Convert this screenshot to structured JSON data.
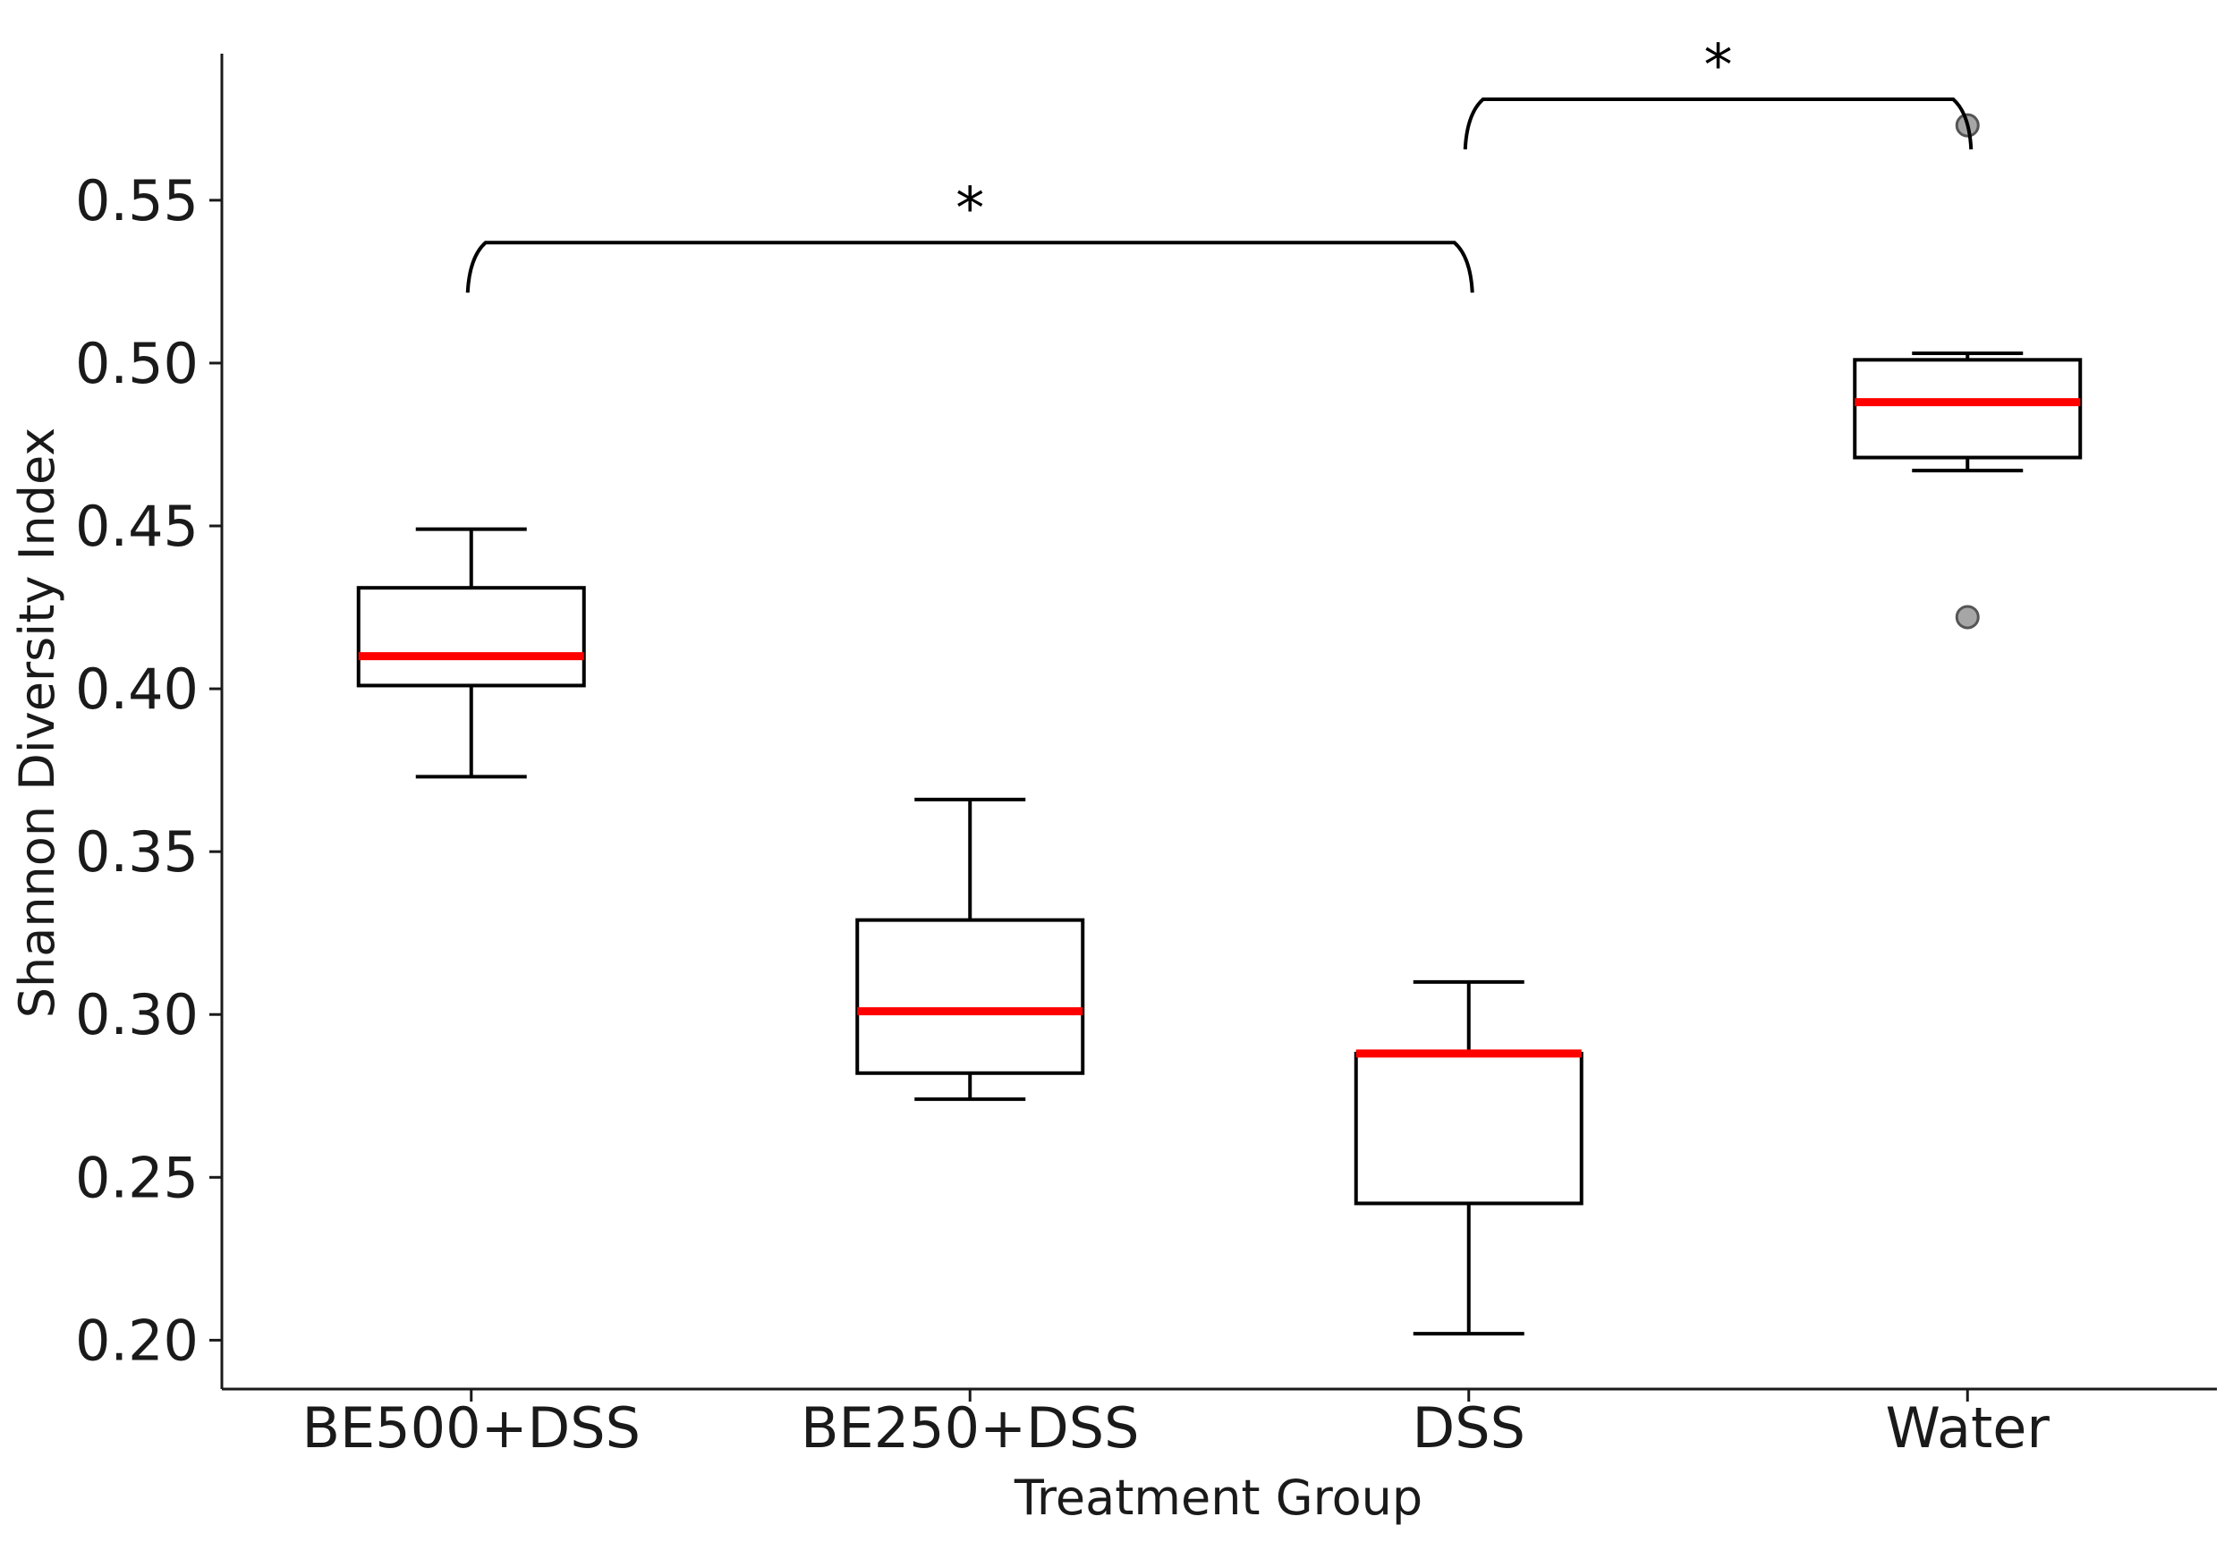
{
  "chart_data": {
    "type": "boxplot",
    "xlabel": "Treatment Group",
    "ylabel": "Shannon Diversity Index",
    "ylim": [
      0.185,
      0.595
    ],
    "yticks": [
      0.2,
      0.25,
      0.3,
      0.35,
      0.4,
      0.45,
      0.5,
      0.55
    ],
    "ytick_labels": [
      "0.20",
      "0.25",
      "0.30",
      "0.35",
      "0.40",
      "0.45",
      "0.50",
      "0.55"
    ],
    "grid": false,
    "categories": [
      "BE500+DSS",
      "BE250+DSS",
      "DSS",
      "Water"
    ],
    "boxes": [
      {
        "name": "BE500+DSS",
        "whisker_low": 0.373,
        "q1": 0.401,
        "median": 0.41,
        "q3": 0.431,
        "whisker_high": 0.449,
        "outliers": []
      },
      {
        "name": "BE250+DSS",
        "whisker_low": 0.274,
        "q1": 0.282,
        "median": 0.301,
        "q3": 0.329,
        "whisker_high": 0.366,
        "outliers": []
      },
      {
        "name": "DSS",
        "whisker_low": 0.202,
        "q1": 0.242,
        "median": 0.288,
        "q3": 0.288,
        "whisker_high": 0.31,
        "outliers": []
      },
      {
        "name": "Water",
        "whisker_low": 0.467,
        "q1": 0.471,
        "median": 0.488,
        "q3": 0.501,
        "whisker_high": 0.503,
        "outliers": [
          0.573,
          0.422
        ]
      }
    ],
    "significance": [
      {
        "from": "BE500+DSS",
        "to": "DSS",
        "label": "*",
        "level": 0.537
      },
      {
        "from": "DSS",
        "to": "Water",
        "label": "*",
        "level": 0.581
      }
    ],
    "colors": {
      "median": "#ff0000",
      "box_edge": "#000000",
      "outlier_fill": "#a6a6a6",
      "outlier_edge": "#555555"
    }
  }
}
